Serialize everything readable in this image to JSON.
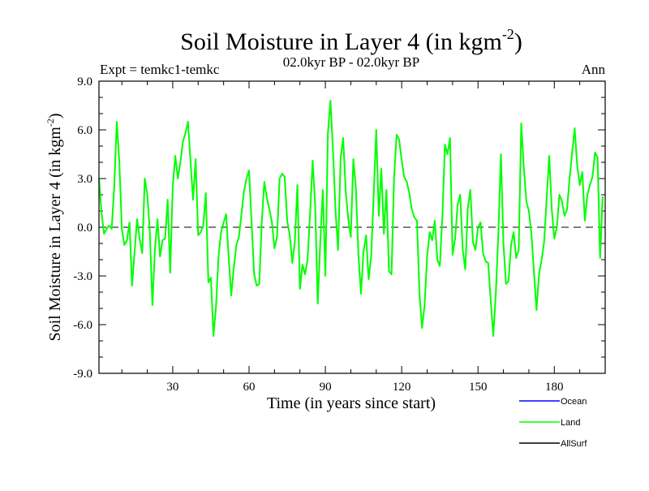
{
  "chart_data": {
    "type": "line",
    "title_main": "Soil Moisture in Layer 4 (in kgm",
    "title_sup": "-2",
    "title_close": ")",
    "subtitle_left": "Expt = temkc1-temkc",
    "subtitle_center": "02.0kyr BP - 02.0kyr BP",
    "subtitle_right": "Ann",
    "xlabel": "Time (in years since start)",
    "ylabel_main": "Soil Moisture in Layer 4 (in kgm",
    "ylabel_sup": "-2",
    "ylabel_close": ")",
    "xlim": [
      1,
      200
    ],
    "ylim": [
      -9,
      9
    ],
    "xticks": [
      30,
      60,
      90,
      120,
      150,
      180
    ],
    "xtick_labels": [
      "30",
      "60",
      "90",
      "120",
      "150",
      "180"
    ],
    "yticks": [
      -9,
      -6,
      -3,
      0,
      3,
      6,
      9
    ],
    "ytick_labels": [
      "-9.0",
      "-6.0",
      "-3.0",
      "0.0",
      "3.0",
      "6.0",
      "9.0"
    ],
    "zero_line": true,
    "legend": [
      {
        "name": "Ocean",
        "color": "#0000ff"
      },
      {
        "name": "Land",
        "color": "#00ff00"
      },
      {
        "name": "AllSurf",
        "color": "#000000"
      }
    ],
    "series": [
      {
        "name": "Land",
        "color": "#00ff00",
        "x_start": 1,
        "values": [
          3.0,
          0.9,
          -0.4,
          -0.1,
          0.1,
          -0.1,
          2.5,
          6.5,
          4.0,
          -0.1,
          -1.1,
          -0.8,
          0.3,
          -3.6,
          -1.5,
          0.5,
          -0.7,
          -1.6,
          3.0,
          2.0,
          -0.3,
          -4.8,
          -1.4,
          0.5,
          -1.8,
          -0.8,
          -0.7,
          1.7,
          -2.8,
          2.5,
          4.4,
          3.0,
          4.0,
          5.3,
          5.8,
          6.5,
          4.0,
          1.7,
          4.2,
          -0.5,
          -0.3,
          0.1,
          2.1,
          -3.4,
          -3.1,
          -6.7,
          -4.9,
          -1.8,
          -0.3,
          0.3,
          0.8,
          -1.9,
          -4.2,
          -2.5,
          -1.1,
          -0.6,
          0.8,
          2.2,
          3.0,
          3.5,
          0.3,
          -2.9,
          -3.6,
          -3.5,
          0.3,
          2.8,
          1.8,
          1.1,
          0.3,
          -1.3,
          -0.6,
          3.0,
          3.3,
          3.1,
          0.4,
          -0.5,
          -2.2,
          -0.9,
          2.6,
          -3.8,
          -2.3,
          -2.9,
          -2.0,
          0.9,
          4.1,
          1.3,
          -4.7,
          -0.9,
          2.3,
          -3.0,
          5.8,
          7.8,
          4.7,
          1.0,
          -1.4,
          4.3,
          5.5,
          2.2,
          0.5,
          -0.6,
          4.2,
          2.4,
          -1.7,
          -4.1,
          -1.5,
          -0.5,
          -3.2,
          -1.8,
          2.0,
          6.0,
          0.7,
          3.6,
          -0.4,
          2.3,
          -2.7,
          -2.9,
          3.0,
          5.7,
          5.4,
          4.1,
          3.1,
          2.8,
          2.1,
          1.1,
          0.6,
          0.4,
          -4.1,
          -6.2,
          -4.8,
          -1.8,
          -0.3,
          -0.8,
          0.4,
          -2.0,
          -2.4,
          0.7,
          5.1,
          4.5,
          5.5,
          -1.7,
          -0.7,
          1.4,
          2.0,
          -1.4,
          -2.6,
          1.2,
          2.3,
          -0.9,
          -1.4,
          0.0,
          0.3,
          -1.6,
          -2.1,
          -2.2,
          -4.5,
          -6.7,
          -4.1,
          -0.4,
          4.5,
          -1.0,
          -3.5,
          -3.3,
          -1.1,
          -0.3,
          -1.9,
          -1.4,
          6.4,
          3.7,
          1.6,
          1.0,
          -0.4,
          -2.8,
          -5.1,
          -2.9,
          -2.0,
          -0.9,
          1.8,
          4.4,
          1.1,
          -0.7,
          0.0,
          2.0,
          1.6,
          0.7,
          1.1,
          3.0,
          4.6,
          6.1,
          3.8,
          2.6,
          3.4,
          0.4,
          2.0,
          2.6,
          3.1,
          4.6,
          4.3,
          -1.9,
          1.9
        ]
      }
    ]
  }
}
